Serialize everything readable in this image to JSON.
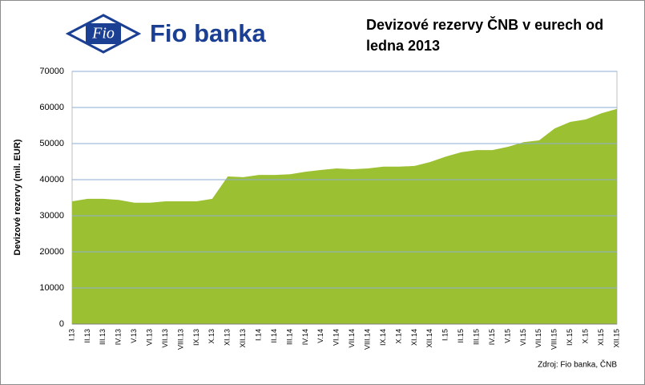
{
  "logo": {
    "emblem": "Fio",
    "name": "Fio banka"
  },
  "chart_data": {
    "type": "area",
    "title": "Devizové rezervy ČNB v eurech od ledna 2013",
    "y_label": "Devizové rezervy (mil. EUR)",
    "annotation": "Zdroj: Fio banka, ČNB",
    "categories": [
      "I.13",
      "II.13",
      "III.13",
      "IV.13",
      "V.13",
      "VI.13",
      "VII.13",
      "VIII.13",
      "IX.13",
      "X.13",
      "XI.13",
      "XII.13",
      "I.14",
      "II.14",
      "III.14",
      "IV.14",
      "V.14",
      "VI.14",
      "VII.14",
      "VIII.14",
      "IX.14",
      "X.14",
      "XI.14",
      "XII.14",
      "I.15",
      "II.15",
      "III.15",
      "IV.15",
      "V.15",
      "VI.15",
      "VII.15",
      "VIII.15",
      "IX.15",
      "X.15",
      "XI.15",
      "XII.15"
    ],
    "values": [
      34000,
      34700,
      34700,
      34400,
      33600,
      33600,
      34000,
      34000,
      34000,
      34700,
      40900,
      40700,
      41300,
      41300,
      41500,
      42200,
      42700,
      43100,
      42900,
      43100,
      43600,
      43600,
      43800,
      44900,
      46400,
      47600,
      48200,
      48200,
      49100,
      50400,
      50900,
      54200,
      56000,
      56700,
      58400,
      59600
    ],
    "color": "#9bc031",
    "ylim": [
      0,
      70000
    ],
    "yticks": [
      0,
      10000,
      20000,
      30000,
      40000,
      50000,
      60000,
      70000
    ],
    "grid": true,
    "grid_color": "#8eaed6"
  }
}
